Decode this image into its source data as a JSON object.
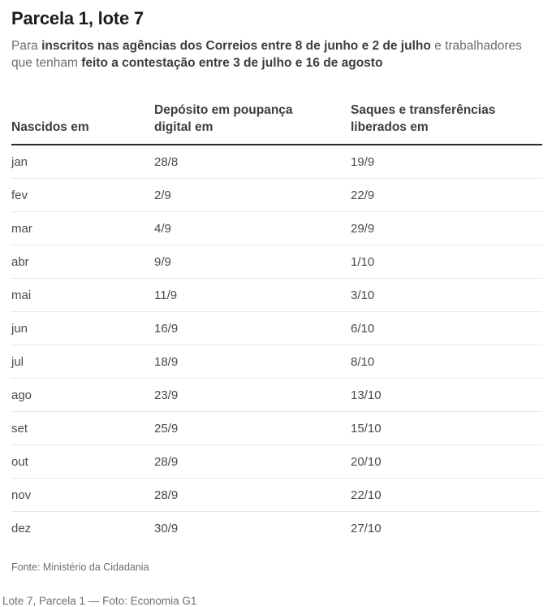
{
  "page": {
    "title": "Parcela 1, lote 7",
    "subtitle_segments": [
      {
        "text": "Para ",
        "bold": false
      },
      {
        "text": "inscritos nas agências dos Correios entre 8 de junho e 2 de julho",
        "bold": true
      },
      {
        "text": " e trabalhadores que tenham ",
        "bold": false
      },
      {
        "text": "feito a contestação entre 3 de julho e 16 de agosto",
        "bold": true
      }
    ],
    "source": "Fonte: Ministério da Cidadania",
    "caption": "Lote 7, Parcela 1 — Foto: Economia G1"
  },
  "chart_data": {
    "type": "table",
    "title": "Parcela 1, lote 7",
    "columns": [
      "Nascidos em",
      "Depósito em poupança digital em",
      "Saques e transferências liberados em"
    ],
    "rows": [
      [
        "jan",
        "28/8",
        "19/9"
      ],
      [
        "fev",
        "2/9",
        "22/9"
      ],
      [
        "mar",
        "4/9",
        "29/9"
      ],
      [
        "abr",
        "9/9",
        "1/10"
      ],
      [
        "mai",
        "11/9",
        "3/10"
      ],
      [
        "jun",
        "16/9",
        "6/10"
      ],
      [
        "jul",
        "18/9",
        "8/10"
      ],
      [
        "ago",
        "23/9",
        "13/10"
      ],
      [
        "set",
        "25/9",
        "15/10"
      ],
      [
        "out",
        "28/9",
        "20/10"
      ],
      [
        "nov",
        "28/9",
        "22/10"
      ],
      [
        "dez",
        "30/9",
        "27/10"
      ]
    ]
  },
  "colors": {
    "title_text": "#1c1c1c",
    "body_text": "#6d6d6d",
    "emphasis_text": "#3d3d3d",
    "cell_text": "#4a4a4a",
    "header_rule": "#2b2b2b",
    "row_divider": "#e8e8e8",
    "background": "#ffffff"
  }
}
